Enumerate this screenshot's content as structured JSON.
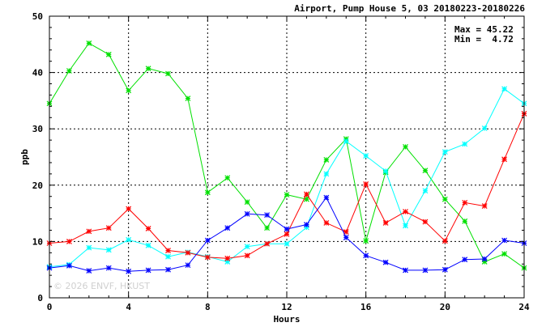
{
  "chart_data": {
    "type": "line",
    "title": "Airport, Pump House 5, 03 20180223-20180226",
    "xlabel": "Hours",
    "ylabel": "ppb",
    "xlim": [
      0,
      24
    ],
    "ylim": [
      0,
      50
    ],
    "x_ticks": [
      0,
      4,
      8,
      12,
      16,
      20,
      24
    ],
    "y_ticks": [
      0,
      10,
      20,
      30,
      40,
      50
    ],
    "grid": true,
    "x": [
      0,
      1,
      2,
      3,
      4,
      5,
      6,
      7,
      8,
      9,
      10,
      11,
      12,
      13,
      14,
      15,
      16,
      17,
      18,
      19,
      20,
      21,
      22,
      23,
      24
    ],
    "series": [
      {
        "color": "#00e000",
        "values": [
          34.5,
          40.3,
          45.2,
          43.2,
          36.8,
          40.7,
          39.8,
          35.4,
          18.7,
          21.3,
          17.0,
          12.4,
          18.3,
          17.5,
          24.5,
          28.2,
          10.1,
          22.3,
          26.8,
          22.6,
          17.5,
          13.6,
          6.4,
          7.8,
          5.3
        ]
      },
      {
        "color": "#00ffff",
        "values": [
          5.5,
          5.9,
          8.9,
          8.5,
          10.3,
          9.3,
          7.3,
          8.1,
          7.3,
          6.4,
          9.1,
          9.6,
          9.6,
          12.5,
          22.0,
          27.8,
          25.2,
          22.5,
          12.8,
          19.0,
          25.9,
          27.3,
          30.1,
          37.1,
          34.5
        ]
      },
      {
        "color": "#ff0000",
        "values": [
          9.7,
          10.0,
          11.8,
          12.4,
          15.8,
          12.3,
          8.4,
          8.0,
          7.2,
          7.0,
          7.5,
          9.6,
          11.3,
          18.4,
          13.3,
          11.7,
          20.2,
          13.3,
          15.3,
          13.5,
          10.1,
          16.9,
          16.3,
          24.6,
          32.7
        ]
      },
      {
        "color": "#0000ff",
        "values": [
          5.3,
          5.7,
          4.8,
          5.3,
          4.7,
          4.9,
          5.0,
          5.8,
          10.2,
          12.4,
          14.9,
          14.7,
          12.2,
          13.0,
          17.8,
          10.7,
          7.5,
          6.3,
          4.9,
          4.9,
          5.0,
          6.8,
          6.9,
          10.2,
          9.7
        ]
      }
    ],
    "stats": {
      "max_label": "Max = 45.22",
      "min_label": "Min =  4.72"
    }
  },
  "watermark": "© 2026  ENVF, HKUST"
}
